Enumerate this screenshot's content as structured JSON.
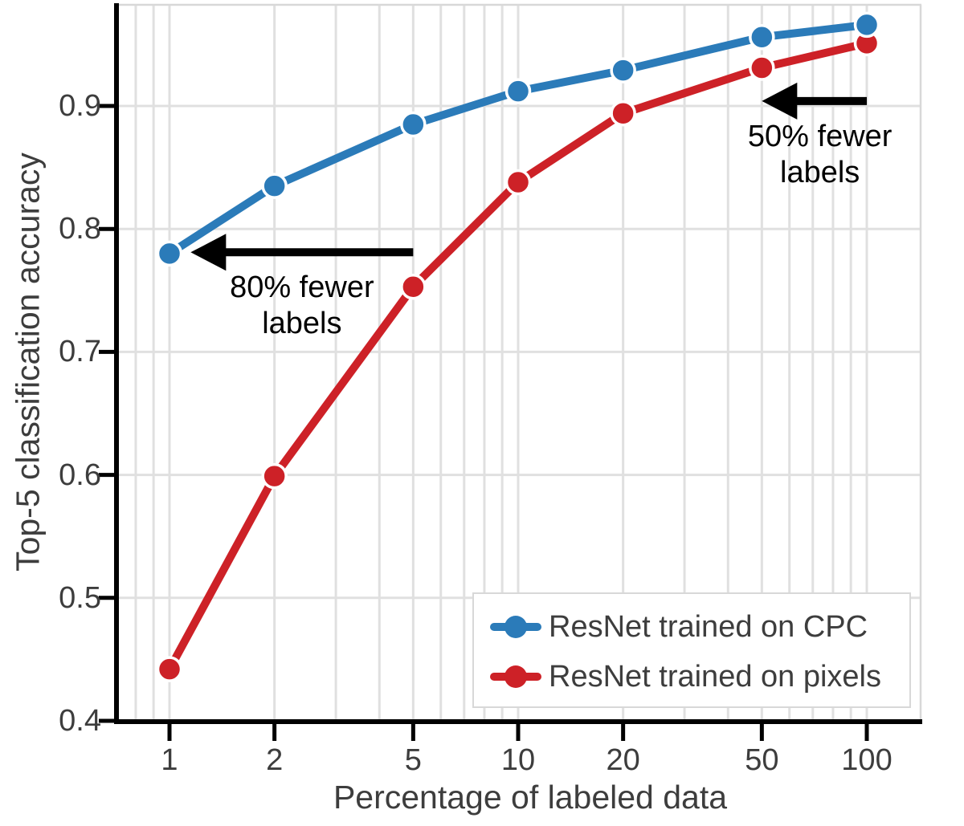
{
  "chart_data": {
    "type": "line",
    "x_scale": "log",
    "x": [
      1,
      2,
      5,
      10,
      20,
      50,
      100
    ],
    "x_tick_labels": [
      "1",
      "2",
      "5",
      "10",
      "20",
      "50",
      "100"
    ],
    "y_ticks": [
      0.4,
      0.5,
      0.6,
      0.7,
      0.8,
      0.9
    ],
    "y_tick_labels": [
      "0.4",
      "0.5",
      "0.6",
      "0.7",
      "0.8",
      "0.9"
    ],
    "xlim": [
      0.7,
      145
    ],
    "ylim": [
      0.4,
      0.983
    ],
    "grid": true,
    "minor_grid_x": [
      0.8,
      0.9,
      1,
      2,
      3,
      4,
      5,
      6,
      7,
      8,
      9,
      10,
      20,
      30,
      40,
      50,
      60,
      70,
      80,
      90,
      100
    ],
    "grid_y": [
      0.5,
      0.6,
      0.7,
      0.8,
      0.9
    ],
    "title": "",
    "xlabel": "Percentage of labeled data",
    "ylabel": "Top-5 classification accuracy",
    "legend_position": "lower right",
    "series": [
      {
        "name": "ResNet trained on CPC",
        "color": "#2b7bb9",
        "values": [
          0.78,
          0.835,
          0.885,
          0.912,
          0.929,
          0.956,
          0.966
        ]
      },
      {
        "name": "ResNet trained on pixels",
        "color": "#cd2127",
        "values": [
          0.442,
          0.599,
          0.753,
          0.838,
          0.894,
          0.931,
          0.951
        ]
      }
    ],
    "annotations": [
      {
        "text": [
          "80% fewer",
          "labels"
        ],
        "arrow_y": 0.781,
        "arrow_tail_x": 5,
        "arrow_tip_x": 1.15
      },
      {
        "text": [
          "50% fewer",
          "labels"
        ],
        "arrow_y": 0.904,
        "arrow_tail_x": 100,
        "arrow_tip_x": 50
      }
    ]
  },
  "colors": {
    "background": "#ffffff",
    "grid": "#e0e0e0",
    "spine_dark": "#000000",
    "spine_light": "#d8d8d8",
    "tick_label": "#3d3d3d",
    "annotation": "#000000",
    "legend_border": "#d8d8d8",
    "marker_halo": "#ffffff"
  }
}
